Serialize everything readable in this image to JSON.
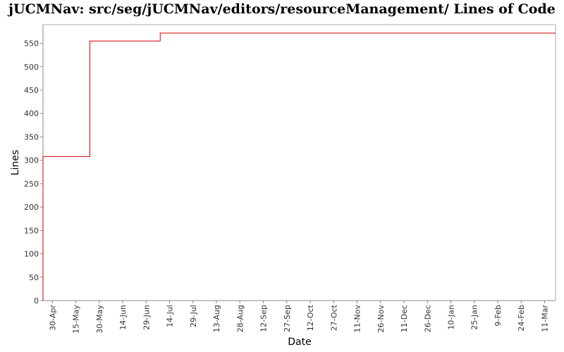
{
  "chart_data": {
    "type": "line",
    "title": "jUCMNav: src/seg/jUCMNav/editors/resourceManagement/ Lines of Code",
    "xlabel": "Date",
    "ylabel": "Lines",
    "ylim": [
      0,
      590
    ],
    "y_ticks": [
      0,
      50,
      100,
      150,
      200,
      250,
      300,
      350,
      400,
      450,
      500,
      550
    ],
    "x_ticks": [
      "30-Apr",
      "15-May",
      "30-May",
      "14-Jun",
      "29-Jun",
      "14-Jul",
      "29-Jul",
      "13-Aug",
      "28-Aug",
      "12-Sep",
      "27-Sep",
      "12-Oct",
      "27-Oct",
      "11-Nov",
      "26-Nov",
      "11-Dec",
      "26-Dec",
      "10-Jan",
      "25-Jan",
      "9-Feb",
      "24-Feb",
      "11-Mar"
    ],
    "x_start": "2008-04-24",
    "x_end": "2009-03-18",
    "step": true,
    "series": [
      {
        "color": "#cc0000",
        "points": [
          {
            "x": "2008-04-24",
            "y": 0
          },
          {
            "x": "2008-04-24",
            "y": 308
          },
          {
            "x": "2008-05-24",
            "y": 555
          },
          {
            "x": "2008-07-08",
            "y": 572
          },
          {
            "x": "2009-03-18",
            "y": 572
          }
        ]
      }
    ],
    "grid": false,
    "legend": "none"
  }
}
